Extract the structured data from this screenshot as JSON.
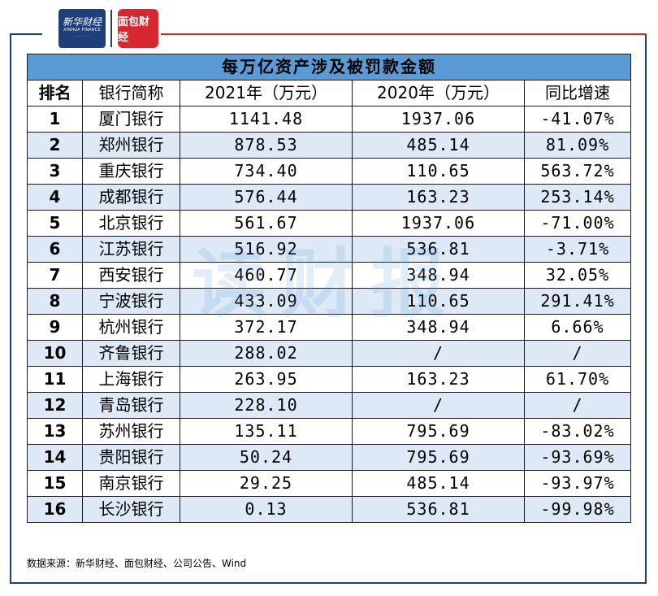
{
  "logos": {
    "xinhua_text": "新华财经",
    "xinhua_sub": "XINHUA FINANCE",
    "mianbao_text": "面包财经"
  },
  "table": {
    "title": "每万亿资产涉及被罚款金额",
    "headers": [
      "排名",
      "银行简称",
      "2021年（万元）",
      "2020年（万元）",
      "同比增速"
    ],
    "rows": [
      [
        "1",
        "厦门银行",
        "1141.48",
        "1937.06",
        "-41.07%"
      ],
      [
        "2",
        "郑州银行",
        "878.53",
        "485.14",
        "81.09%"
      ],
      [
        "3",
        "重庆银行",
        "734.40",
        "110.65",
        "563.72%"
      ],
      [
        "4",
        "成都银行",
        "576.44",
        "163.23",
        "253.14%"
      ],
      [
        "5",
        "北京银行",
        "561.67",
        "1937.06",
        "-71.00%"
      ],
      [
        "6",
        "江苏银行",
        "516.92",
        "536.81",
        "-3.71%"
      ],
      [
        "7",
        "西安银行",
        "460.77",
        "348.94",
        "32.05%"
      ],
      [
        "8",
        "宁波银行",
        "433.09",
        "110.65",
        "291.41%"
      ],
      [
        "9",
        "杭州银行",
        "372.17",
        "348.94",
        "6.66%"
      ],
      [
        "10",
        "齐鲁银行",
        "288.02",
        "/",
        "/"
      ],
      [
        "11",
        "上海银行",
        "263.95",
        "163.23",
        "61.70%"
      ],
      [
        "12",
        "青岛银行",
        "228.10",
        "/",
        "/"
      ],
      [
        "13",
        "苏州银行",
        "135.11",
        "795.69",
        "-83.02%"
      ],
      [
        "14",
        "贵阳银行",
        "50.24",
        "795.69",
        "-93.69%"
      ],
      [
        "15",
        "南京银行",
        "29.25",
        "485.14",
        "-93.97%"
      ],
      [
        "16",
        "长沙银行",
        "0.13",
        "536.81",
        "-99.98%"
      ]
    ]
  },
  "watermark": "读财报",
  "source": "数据来源：新华财经、面包财经、公司公告、Wind",
  "colors": {
    "header_bg": "#5b9bd5",
    "stripe_bg": "#dde9f6",
    "frame": "#1f3f7a",
    "accent_red": "#d7282f"
  }
}
